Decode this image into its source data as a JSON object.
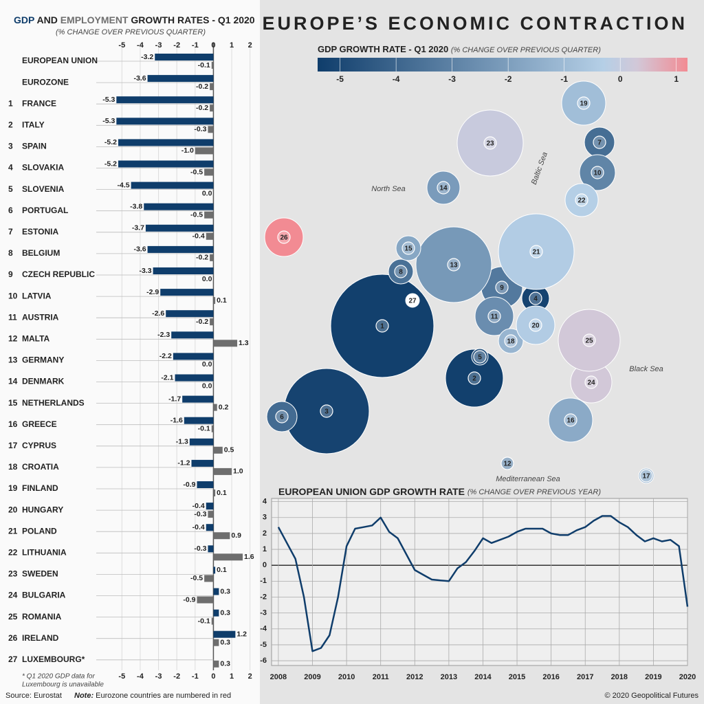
{
  "title": "EUROPE’S ECONOMIC CONTRACTION",
  "footnote": [
    "* Q1 2020 GDP data for",
    "Luxembourg is unavailable"
  ],
  "source": "Source: Eurostat",
  "note_label": "Note:",
  "note": "Eurozone countries are numbered in red",
  "copyright": "© 2020 Geopolitical Futures",
  "chart_data": [
    {
      "type": "bar",
      "orientation": "horizontal",
      "title_connector": "AND",
      "title": "GROWTH RATES - Q1 2020",
      "subtitle": "(% CHANGE OVER PREVIOUS QUARTER)",
      "categories": [
        "EUROPEAN UNION",
        "EUROZONE",
        "FRANCE",
        "ITALY",
        "SPAIN",
        "SLOVAKIA",
        "SLOVENIA",
        "PORTUGAL",
        "ESTONIA",
        "BELGIUM",
        "CZECH REPUBLIC",
        "LATVIA",
        "AUSTRIA",
        "MALTA",
        "GERMANY",
        "DENMARK",
        "NETHERLANDS",
        "GREECE",
        "CYPRUS",
        "CROATIA",
        "FINLAND",
        "HUNGARY",
        "POLAND",
        "LITHUANIA",
        "SWEDEN",
        "BULGARIA",
        "ROMANIA",
        "IRELAND",
        "LUXEMBOURG*"
      ],
      "ranks": [
        null,
        null,
        1,
        2,
        3,
        4,
        5,
        6,
        7,
        8,
        9,
        10,
        11,
        12,
        13,
        14,
        15,
        16,
        17,
        18,
        19,
        20,
        21,
        22,
        23,
        24,
        25,
        26,
        27
      ],
      "eurozone": [
        false,
        true,
        true,
        true,
        true,
        true,
        true,
        true,
        true,
        true,
        false,
        true,
        true,
        true,
        true,
        false,
        true,
        true,
        true,
        false,
        true,
        false,
        false,
        true,
        false,
        false,
        false,
        true,
        true
      ],
      "eurozone_color": "#c0272d",
      "series": [
        {
          "name": "GDP",
          "color": "#0f3d6b",
          "values": [
            -3.2,
            -3.6,
            -5.3,
            -5.3,
            -5.2,
            -5.2,
            -4.5,
            -3.8,
            -3.7,
            -3.6,
            -3.3,
            -2.9,
            -2.6,
            -2.3,
            -2.2,
            -2.1,
            -1.7,
            -1.6,
            -1.3,
            -1.2,
            -0.9,
            -0.4,
            -0.4,
            -0.3,
            0.1,
            0.3,
            0.3,
            1.2,
            null
          ],
          "value_labels": [
            "-3.2",
            "-3.6",
            "-5.3",
            "-5.3",
            "-5.2",
            "-5.2",
            "-4.5",
            "-3.8",
            "-3.7",
            "-3.6",
            "-3.3",
            "-2.9",
            "-2.6",
            "-2.3",
            "-2.2",
            "-2.1",
            "-1.7",
            "-1.6",
            "-1.3",
            "-1.2",
            "-0.9",
            "-0.4",
            "-0.4",
            "-0.3",
            "0.1",
            "0.3",
            "0.3",
            "1.2",
            null
          ]
        },
        {
          "name": "EMPLOYMENT",
          "color": "#6e6e6e",
          "values": [
            -0.1,
            -0.2,
            -0.2,
            -0.3,
            -1.0,
            -0.5,
            0.0,
            -0.5,
            -0.4,
            -0.2,
            0.0,
            0.1,
            -0.2,
            1.3,
            0.0,
            0.0,
            0.2,
            -0.1,
            0.5,
            1.0,
            0.1,
            -0.3,
            0.9,
            1.6,
            -0.5,
            -0.9,
            -0.1,
            0.3,
            0.3
          ],
          "value_labels": [
            "-0.1",
            "-0.2",
            "-0.2",
            "-0.3",
            "-1.0",
            "-0.5",
            "0.0",
            "-0.5",
            "-0.4",
            "-0.2",
            "0.0",
            "0.1",
            "-0.2",
            "1.3",
            "0.0",
            "0.0",
            "0.2",
            "-0.1",
            "0.5",
            "1.0",
            "0.1",
            "-0.3",
            "0.9",
            "1.6",
            "-0.5",
            "-0.9",
            "-0.1",
            "0.3",
            "0.3"
          ]
        }
      ],
      "xlim": [
        -5.5,
        2.2
      ],
      "xticks": [
        -5,
        -4,
        -3,
        -2,
        -1,
        0,
        1,
        2
      ],
      "grid": true
    },
    {
      "type": "map",
      "title": "GDP GROWTH RATE - Q1 2020",
      "subtitle": "(% CHANGE OVER PREVIOUS QUARTER)",
      "colorscale": [
        [
          -5.4,
          "#0f3d6b"
        ],
        [
          -0.3,
          "#b5cfe6"
        ],
        [
          0.3,
          "#d2c8d8"
        ],
        [
          1.2,
          "#f28b93"
        ]
      ],
      "clim": [
        -5.4,
        1.2
      ],
      "cticks": [
        -5,
        -4,
        -3,
        -2,
        -1,
        0,
        1
      ],
      "labels": [
        "North Sea",
        "Baltic Sea",
        "Black Sea",
        "Mediterranean Sea"
      ]
    },
    {
      "type": "line",
      "title": "EUROPEAN UNION GDP GROWTH RATE",
      "subtitle": "(% CHANGE OVER PREVIOUS YEAR)",
      "color": "#0f3d6b",
      "x": [
        2008,
        2008.25,
        2008.5,
        2008.75,
        2009,
        2009.25,
        2009.5,
        2009.75,
        2010,
        2010.25,
        2010.5,
        2010.75,
        2011,
        2011.25,
        2011.5,
        2011.75,
        2012,
        2012.25,
        2012.5,
        2012.75,
        2013,
        2013.25,
        2013.5,
        2013.75,
        2014,
        2014.25,
        2014.5,
        2014.75,
        2015,
        2015.25,
        2015.5,
        2015.75,
        2016,
        2016.25,
        2016.5,
        2016.75,
        2017,
        2017.25,
        2017.5,
        2017.75,
        2018,
        2018.25,
        2018.5,
        2018.75,
        2019,
        2019.25,
        2019.5,
        2019.75,
        2020
      ],
      "values": [
        2.4,
        1.4,
        0.4,
        -2.0,
        -5.4,
        -5.2,
        -4.4,
        -2.0,
        1.2,
        2.3,
        2.4,
        2.5,
        3.0,
        2.1,
        1.7,
        0.7,
        -0.3,
        -0.6,
        -0.9,
        -0.95,
        -1.0,
        -0.2,
        0.2,
        0.9,
        1.7,
        1.4,
        1.6,
        1.8,
        2.1,
        2.3,
        2.3,
        2.3,
        2.0,
        1.9,
        1.9,
        2.2,
        2.4,
        2.8,
        3.1,
        3.1,
        2.7,
        2.4,
        1.9,
        1.5,
        1.7,
        1.5,
        1.6,
        1.2,
        -2.6
      ],
      "xlim": [
        2007.8,
        2020
      ],
      "xticks": [
        2008,
        2009,
        2010,
        2011,
        2012,
        2013,
        2014,
        2015,
        2016,
        2017,
        2018,
        2019,
        2020
      ],
      "ylim": [
        -6.3,
        4.2
      ],
      "yticks": [
        -6,
        -5,
        -4,
        -3,
        -2,
        -1,
        0,
        1,
        2,
        3,
        4
      ],
      "grid": true
    }
  ]
}
